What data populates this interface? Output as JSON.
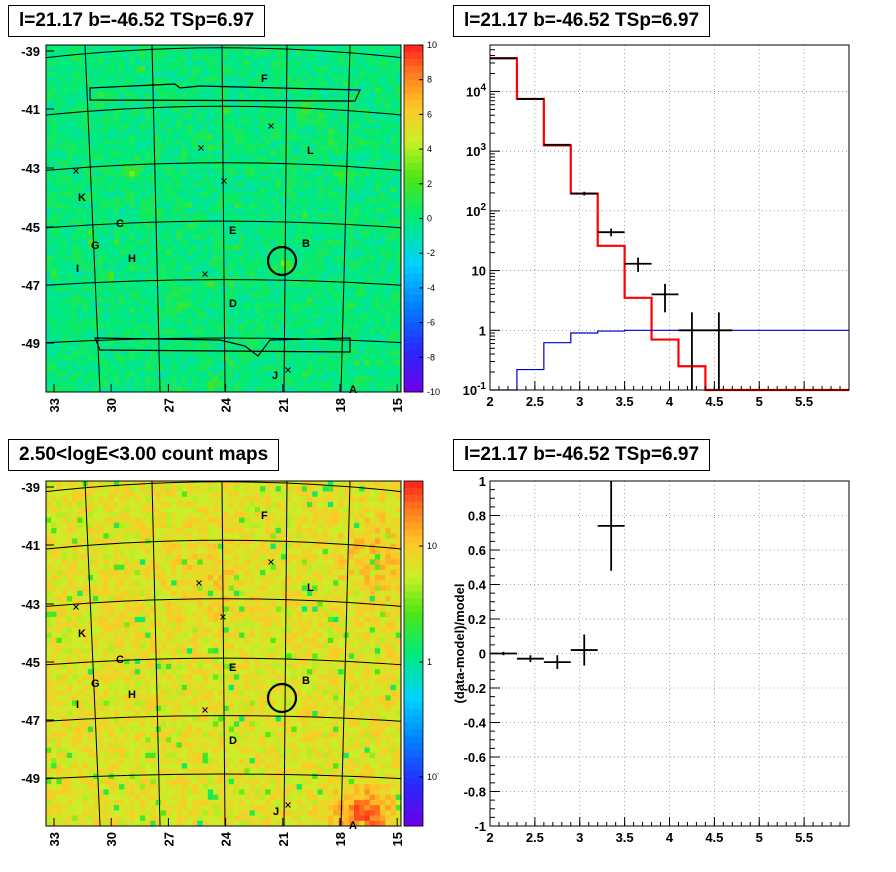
{
  "panels": {
    "top_left_title": "l=21.17 b=-46.52 TSp=6.97",
    "top_right_title": "l=21.17 b=-46.52 TSp=6.97",
    "bottom_left_title": "2.50<logE<3.00 count maps",
    "bottom_right_title": "l=21.17 b=-46.52 TSp=6.97"
  },
  "colors": {
    "model_line": "#ff0000",
    "background_line": "#0000cc",
    "data": "#000000"
  },
  "chart_data": [
    {
      "type": "heatmap",
      "title": "l=21.17 b=-46.52 TSp=6.97",
      "x_ticks": [
        "33",
        "30",
        "27",
        "24",
        "21",
        "18",
        "15"
      ],
      "y_ticks": [
        "-39",
        "-41",
        "-43",
        "-45",
        "-47",
        "-49"
      ],
      "colorbar_ticks": [
        "10",
        "8",
        "6",
        "4",
        "2",
        "0",
        "-2",
        "-4",
        "-6",
        "-8",
        "-10"
      ],
      "zlim": [
        -10,
        10
      ],
      "source_labels": [
        "F",
        "L",
        "K",
        "C",
        "G",
        "H",
        "I",
        "E",
        "B",
        "D",
        "J",
        "A"
      ]
    },
    {
      "type": "line",
      "title": "l=21.17 b=-46.52 TSp=6.97",
      "y_scale": "log",
      "xlim": [
        2,
        6
      ],
      "ylim": [
        0.1,
        60000
      ],
      "x_ticks": [
        "2",
        "2.5",
        "3",
        "3.5",
        "4",
        "4.5",
        "5",
        "5.5"
      ],
      "y_ticks": [
        "10^-1",
        "1",
        "10",
        "10^2",
        "10^3",
        "10^4"
      ],
      "grid": true,
      "x_bin_edges": [
        2.0,
        2.3,
        2.6,
        2.9,
        3.2,
        3.5,
        3.8,
        4.1,
        4.4,
        6.0
      ],
      "series": [
        {
          "values": [
            36000,
            7500,
            1250,
            195,
            26,
            3.5,
            0.7,
            0.25,
            0.1
          ]
        },
        {
          "values": [
            0.05,
            0.22,
            0.62,
            0.9,
            0.97,
            1.0,
            1.0,
            1.0,
            1.0
          ]
        }
      ],
      "points": [
        {
          "x": 2.15,
          "y": 36000,
          "xerr": 0.15,
          "ylo": 35500,
          "yhi": 36500
        },
        {
          "x": 2.45,
          "y": 7500,
          "xerr": 0.15,
          "ylo": 7350,
          "yhi": 7650
        },
        {
          "x": 2.75,
          "y": 1280,
          "xerr": 0.15,
          "ylo": 1240,
          "yhi": 1320
        },
        {
          "x": 3.05,
          "y": 195,
          "xerr": 0.15,
          "ylo": 181,
          "yhi": 209
        },
        {
          "x": 3.35,
          "y": 44,
          "xerr": 0.15,
          "ylo": 37.5,
          "yhi": 50.5
        },
        {
          "x": 3.65,
          "y": 13,
          "xerr": 0.15,
          "ylo": 9.5,
          "yhi": 16.5
        },
        {
          "x": 3.95,
          "y": 4,
          "xerr": 0.15,
          "ylo": 2,
          "yhi": 6
        },
        {
          "x": 4.25,
          "y": 1,
          "xerr": 0.15,
          "ylo": 0.1,
          "yhi": 2
        },
        {
          "x": 4.55,
          "y": 1,
          "xerr": 0.15,
          "ylo": 0.1,
          "yhi": 2
        }
      ]
    },
    {
      "type": "heatmap",
      "title": "2.50<logE<3.00 count maps",
      "x_ticks": [
        "33",
        "30",
        "27",
        "24",
        "21",
        "18",
        "15"
      ],
      "y_ticks": [
        "-39",
        "-41",
        "-43",
        "-45",
        "-47",
        "-49"
      ],
      "colorbar_ticks": [
        "10",
        "1",
        "10^-1"
      ],
      "z_scale": "log",
      "source_labels": [
        "F",
        "L",
        "K",
        "C",
        "G",
        "H",
        "I",
        "E",
        "B",
        "D",
        "J",
        "A"
      ]
    },
    {
      "type": "scatter",
      "title": "l=21.17 b=-46.52 TSp=6.97",
      "ylabel": "(data-model)/model",
      "xlim": [
        2,
        6
      ],
      "ylim": [
        -1,
        1
      ],
      "x_ticks": [
        "2",
        "2.5",
        "3",
        "3.5",
        "4",
        "4.5",
        "5",
        "5.5"
      ],
      "y_ticks": [
        "1",
        "0.8",
        "0.6",
        "0.4",
        "0.2",
        "0",
        "-0.2",
        "-0.4",
        "-0.6",
        "-0.8",
        "-1"
      ],
      "grid": true,
      "points": [
        {
          "x": 2.15,
          "y": 0.0,
          "xerr": 0.15,
          "ylo": -0.01,
          "yhi": 0.01
        },
        {
          "x": 2.45,
          "y": -0.03,
          "xerr": 0.15,
          "ylo": -0.05,
          "yhi": -0.01
        },
        {
          "x": 2.75,
          "y": -0.05,
          "xerr": 0.15,
          "ylo": -0.09,
          "yhi": -0.01
        },
        {
          "x": 3.05,
          "y": 0.02,
          "xerr": 0.15,
          "ylo": -0.07,
          "yhi": 0.11
        },
        {
          "x": 3.35,
          "y": 0.74,
          "xerr": 0.15,
          "ylo": 0.48,
          "yhi": 1.0
        }
      ]
    }
  ]
}
